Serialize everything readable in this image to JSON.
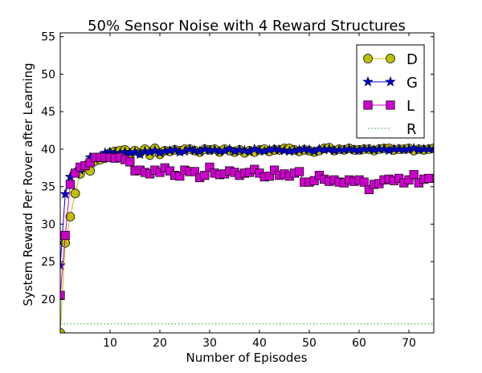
{
  "chart_data": {
    "type": "line",
    "title": "50% Sensor Noise with 4 Reward Structures",
    "xlabel": "Number of Episodes",
    "ylabel": "System Reward Per Rover after Learning",
    "xlim": [
      0,
      75
    ],
    "ylim": [
      15.5,
      55.5
    ],
    "xticks": [
      10,
      20,
      30,
      40,
      50,
      60,
      70
    ],
    "yticks": [
      20,
      25,
      30,
      35,
      40,
      45,
      50,
      55
    ],
    "grid": false,
    "legend_position": "top-right",
    "series": [
      {
        "name": "D",
        "color": "#bfbf00",
        "marker": "circle",
        "values": [
          15.5,
          27.5,
          31.0,
          34.1,
          36.7,
          37.6,
          37.1,
          38.4,
          38.6,
          38.8,
          39.5,
          39.7,
          39.8,
          39.9,
          39.3,
          39.8,
          39.5,
          40.0,
          39.2,
          40.1,
          39.3,
          39.8,
          39.7,
          39.9,
          39.8,
          40.0,
          40.0,
          39.8,
          39.6,
          40.0,
          39.9,
          40.0,
          39.6,
          40.0,
          39.8,
          39.6,
          39.9,
          39.5,
          39.8,
          39.6,
          39.9,
          40.0,
          39.7,
          39.9,
          39.9,
          40.1,
          40.1,
          39.9,
          39.7,
          39.9,
          39.8,
          39.6,
          39.8,
          40.1,
          40.2,
          39.8,
          40.0,
          39.9,
          40.1,
          39.9,
          39.9,
          40.0,
          40.0,
          39.8,
          40.0,
          40.1,
          40.1,
          39.9,
          40.0,
          40.0,
          40.1,
          39.8,
          40.0,
          39.9,
          40.0,
          40.1
        ]
      },
      {
        "name": "G",
        "color": "#0000cc",
        "marker": "star",
        "values": [
          24.5,
          34.0,
          36.3,
          36.9,
          37.2,
          37.8,
          38.9,
          38.8,
          39.0,
          39.5,
          39.6,
          39.5,
          39.4,
          39.6,
          39.5,
          39.6,
          39.3,
          39.7,
          39.6,
          39.8,
          39.5,
          39.7,
          39.8,
          39.9,
          39.6,
          39.7,
          40.0,
          39.8,
          39.7,
          40.0,
          39.8,
          39.9,
          39.7,
          39.8,
          40.0,
          39.7,
          39.9,
          39.8,
          39.7,
          40.0,
          39.8,
          39.7,
          39.9,
          40.0,
          39.9,
          39.8,
          39.7,
          39.8,
          39.9,
          40.0,
          39.9,
          39.7,
          40.0,
          39.9,
          40.0,
          39.8,
          39.9,
          39.9,
          40.0,
          39.9,
          39.8,
          40.0,
          40.0,
          39.9,
          40.0,
          40.0,
          39.8,
          40.0,
          40.0,
          39.9,
          40.0,
          40.1,
          39.9,
          40.0,
          40.0,
          40.0
        ]
      },
      {
        "name": "L",
        "color": "#cc00cc",
        "marker": "square",
        "values": [
          20.5,
          28.5,
          35.3,
          36.8,
          37.6,
          37.8,
          38.2,
          38.9,
          38.9,
          38.9,
          38.9,
          38.8,
          38.9,
          38.6,
          38.3,
          37.1,
          37.2,
          36.9,
          36.7,
          37.2,
          36.9,
          37.5,
          37.1,
          36.5,
          36.4,
          37.2,
          37.0,
          37.0,
          36.2,
          36.5,
          37.6,
          36.8,
          36.6,
          36.7,
          37.1,
          36.9,
          36.5,
          36.8,
          36.9,
          37.3,
          36.8,
          36.3,
          36.4,
          37.2,
          36.5,
          36.7,
          36.4,
          36.8,
          37.0,
          35.6,
          35.6,
          35.8,
          36.5,
          36.0,
          35.7,
          35.9,
          35.6,
          35.5,
          35.9,
          35.7,
          35.9,
          35.6,
          34.6,
          35.3,
          35.4,
          35.9,
          36.0,
          35.8,
          36.1,
          35.5,
          35.9,
          36.6,
          35.5,
          36.0,
          36.1
        ]
      },
      {
        "name": "R",
        "color": "#008000",
        "marker": "none",
        "line_style": "dotted",
        "values": [
          16.7,
          16.7,
          16.7,
          16.7,
          16.7,
          16.7,
          16.7,
          16.7,
          16.7,
          16.7,
          16.7,
          16.7,
          16.7,
          16.7,
          16.7,
          16.7,
          16.7,
          16.7,
          16.7,
          16.7,
          16.7,
          16.7,
          16.7,
          16.7,
          16.7,
          16.7,
          16.7,
          16.7,
          16.7,
          16.7,
          16.7,
          16.7,
          16.7,
          16.7,
          16.7,
          16.7,
          16.7,
          16.7,
          16.7,
          16.7,
          16.7,
          16.7,
          16.7,
          16.7,
          16.7,
          16.7,
          16.7,
          16.7,
          16.7,
          16.7,
          16.7,
          16.7,
          16.7,
          16.7,
          16.7,
          16.7,
          16.7,
          16.7,
          16.7,
          16.7,
          16.7,
          16.7,
          16.7,
          16.7,
          16.7,
          16.7,
          16.7,
          16.7,
          16.7,
          16.7,
          16.7,
          16.7,
          16.7,
          16.7,
          16.7,
          16.7
        ]
      }
    ]
  }
}
